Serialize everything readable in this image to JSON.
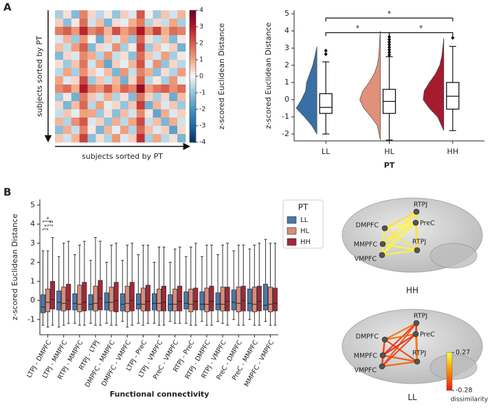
{
  "chart_data": [
    {
      "type": "heatmap",
      "panel": "A",
      "xlabel": "subjects sorted by PT",
      "ylabel": "subjects sorted by PT",
      "colorbar_label": "z-scored Euclidean Distance",
      "clim": [
        -4,
        4
      ],
      "cticks": [
        4,
        3,
        2,
        1,
        0,
        -1,
        -2,
        -3,
        -4
      ],
      "colormap": "RdBu_r",
      "values": [
        [
          -0.8,
          0.3,
          -1.2,
          1.5,
          0.4,
          -0.6,
          0.2,
          -1.0,
          0.5,
          -0.3,
          2.1,
          0.1,
          -0.9,
          0.6,
          -0.4,
          0.8
        ],
        [
          0.5,
          -1.1,
          0.2,
          1.8,
          -0.4,
          0.7,
          -1.3,
          0.3,
          -0.2,
          0.9,
          1.6,
          -0.7,
          0.4,
          -0.5,
          1.0,
          -0.8
        ],
        [
          1.6,
          2.0,
          1.2,
          2.8,
          1.4,
          1.9,
          0.8,
          2.2,
          1.1,
          1.7,
          3.1,
          1.3,
          2.4,
          0.9,
          1.8,
          1.5
        ],
        [
          -0.3,
          0.8,
          -0.9,
          1.2,
          0.1,
          -1.5,
          0.6,
          -0.4,
          0.9,
          -1.0,
          1.9,
          0.3,
          -0.6,
          0.7,
          -1.2,
          0.2
        ],
        [
          0.7,
          -0.5,
          1.1,
          2.0,
          -1.2,
          0.4,
          -0.3,
          1.3,
          -0.8,
          0.2,
          2.4,
          -0.9,
          0.6,
          -0.2,
          0.5,
          -1.4
        ],
        [
          -1.2,
          0.4,
          -0.3,
          1.4,
          0.9,
          -0.7,
          1.2,
          -0.5,
          0.3,
          -1.1,
          1.8,
          0.6,
          -0.4,
          1.1,
          -0.8,
          0.2
        ],
        [
          0.3,
          -0.9,
          0.6,
          1.7,
          -0.4,
          1.0,
          -1.6,
          0.5,
          -0.2,
          0.8,
          2.2,
          -0.3,
          1.3,
          -1.0,
          0.4,
          -0.6
        ],
        [
          -0.6,
          1.0,
          -0.8,
          1.3,
          0.5,
          -0.2,
          0.7,
          -1.3,
          1.2,
          -0.5,
          1.5,
          0.9,
          -1.1,
          0.3,
          -0.7,
          1.1
        ],
        [
          1.0,
          -0.3,
          0.4,
          2.3,
          -0.9,
          0.6,
          -0.5,
          0.8,
          -1.4,
          0.4,
          2.0,
          -0.6,
          0.2,
          -0.8,
          1.2,
          -0.2
        ],
        [
          1.4,
          1.8,
          0.9,
          3.0,
          1.6,
          1.2,
          2.1,
          1.0,
          1.9,
          1.5,
          3.4,
          1.1,
          1.7,
          2.0,
          1.3,
          1.8
        ],
        [
          -0.9,
          0.2,
          -1.4,
          1.6,
          0.6,
          -0.4,
          0.9,
          -0.7,
          0.3,
          -1.2,
          1.7,
          0.5,
          -0.8,
          0.4,
          -1.5,
          0.7
        ],
        [
          0.4,
          -1.3,
          0.7,
          1.9,
          -0.6,
          1.1,
          -0.2,
          0.4,
          -1.0,
          0.6,
          2.5,
          -1.4,
          0.8,
          -0.3,
          0.6,
          -0.9
        ],
        [
          -0.5,
          0.6,
          -0.2,
          1.1,
          1.0,
          -0.9,
          0.3,
          -1.1,
          0.7,
          -0.4,
          1.4,
          0.2,
          -1.6,
          0.9,
          -0.3,
          0.5
        ],
        [
          0.8,
          -0.7,
          1.3,
          2.1,
          -0.3,
          0.5,
          -1.0,
          0.9,
          -0.6,
          1.0,
          2.3,
          -0.5,
          0.7,
          -1.3,
          0.9,
          -0.4
        ],
        [
          -1.1,
          0.9,
          -0.5,
          1.5,
          0.2,
          -1.3,
          0.8,
          -0.2,
          1.1,
          -0.7,
          1.9,
          0.7,
          -0.3,
          0.5,
          -1.7,
          0.4
        ],
        [
          0.6,
          -0.4,
          0.8,
          2.4,
          -1.1,
          0.3,
          -0.7,
          1.2,
          -0.3,
          0.5,
          2.7,
          -0.8,
          1.0,
          -0.6,
          0.3,
          -1.3
        ]
      ]
    },
    {
      "type": "raincloud",
      "ylabel": "z-scored Euclidean Distance",
      "xlabel": "PT",
      "categories": [
        "LL",
        "HL",
        "HH"
      ],
      "colors": [
        "#3a6fa6",
        "#e0917a",
        "#a51c30"
      ],
      "ylim": [
        -2.4,
        5.2
      ],
      "yticks": [
        -2,
        -1,
        0,
        1,
        2,
        3,
        4,
        5
      ],
      "boxes": [
        {
          "low": -2.0,
          "q1": -0.8,
          "median": -0.45,
          "q3": 0.35,
          "high": 2.2,
          "outliers": [
            2.65,
            2.85
          ],
          "kde_y": [
            -2.0,
            -1.5,
            -1.0,
            -0.5,
            0,
            0.5,
            1.0,
            1.5,
            2.0,
            2.5,
            3.1
          ],
          "kde_density": [
            0,
            0.25,
            0.6,
            1.0,
            0.75,
            0.55,
            0.5,
            0.35,
            0.2,
            0.1,
            0
          ]
        },
        {
          "low": -2.35,
          "q1": -0.8,
          "median": -0.1,
          "q3": 0.6,
          "high": 2.5,
          "outliers": [
            2.6,
            2.75,
            2.9,
            3.05,
            3.2,
            3.35,
            3.5,
            3.65
          ],
          "kde_y": [
            -2.35,
            -1.5,
            -1.0,
            -0.5,
            0,
            0.5,
            1.0,
            1.5,
            2.0,
            2.5,
            3.0,
            3.5,
            4.0
          ],
          "kde_density": [
            0,
            0.15,
            0.45,
            0.8,
            1.0,
            0.85,
            0.55,
            0.3,
            0.15,
            0.08,
            0.05,
            0.03,
            0
          ]
        },
        {
          "low": -1.8,
          "q1": -0.55,
          "median": 0.2,
          "q3": 1.0,
          "high": 3.1,
          "outliers": [
            3.6
          ],
          "kde_y": [
            -1.8,
            -1.0,
            -0.5,
            0,
            0.5,
            1.0,
            1.5,
            2.0,
            2.5,
            3.0,
            3.6
          ],
          "kde_density": [
            0,
            0.3,
            0.7,
            1.0,
            0.95,
            0.7,
            0.4,
            0.2,
            0.1,
            0.05,
            0
          ]
        }
      ],
      "brackets": [
        {
          "pair": [
            "LL",
            "HH"
          ],
          "y": 4.75,
          "label": "*"
        },
        {
          "pair": [
            "LL",
            "HL"
          ],
          "y": 3.9,
          "label": "*"
        },
        {
          "pair": [
            "HL",
            "HH"
          ],
          "y": 3.9,
          "label": "*"
        }
      ]
    },
    {
      "type": "grouped_box",
      "panel": "B",
      "ylabel": "z-scored Euclidean Distance",
      "xlabel": "Functional connectivity",
      "categories": [
        "LTPJ - DMPFC",
        "LTPJ - MMPFC",
        "RTPJ - MMPFC",
        "RTPJ - LTPJ",
        "DMPFC - MMPFC",
        "DMPFC - VMPFC",
        "LTPJ - PreC",
        "LTPJ - VMPFC",
        "PreC - VMPFC",
        "RTPJ - PreC",
        "RTPJ - DMPFC",
        "RTPJ - VMPFC",
        "PreC - DMPFC",
        "PreC - MMPFC",
        "MMPFC - VMPFC"
      ],
      "ylim": [
        -1.8,
        5.3
      ],
      "yticks": [
        -1,
        0,
        1,
        2,
        3,
        4,
        5
      ],
      "legend_title": "PT",
      "legend_position": "upper right outside",
      "series": [
        {
          "name": "LL",
          "color": "#4a78a8",
          "values": [
            [
              -1.3,
              -0.65,
              -0.35,
              0.3,
              2.6
            ],
            [
              -1.4,
              -0.5,
              -0.1,
              0.5,
              2.3
            ],
            [
              -1.2,
              -0.5,
              -0.15,
              0.35,
              2.4
            ],
            [
              -1.2,
              -0.5,
              -0.2,
              0.3,
              2.1
            ],
            [
              -1.2,
              -0.5,
              -0.1,
              0.4,
              2.0
            ],
            [
              -1.1,
              -0.55,
              -0.2,
              0.35,
              2.1
            ],
            [
              -1.2,
              -0.45,
              -0.2,
              0.35,
              2.4
            ],
            [
              -1.2,
              -0.5,
              -0.15,
              0.35,
              2.0
            ],
            [
              -1.1,
              -0.55,
              -0.2,
              0.3,
              2.0
            ],
            [
              -1.2,
              -0.45,
              -0.15,
              0.45,
              2.3
            ],
            [
              -1.1,
              -0.5,
              -0.2,
              0.45,
              2.3
            ],
            [
              -1.1,
              -0.5,
              -0.2,
              0.4,
              2.4
            ],
            [
              -1.0,
              -0.5,
              -0.1,
              0.55,
              2.6
            ],
            [
              -1.0,
              -0.55,
              -0.15,
              0.6,
              2.7
            ],
            [
              -1.1,
              -0.5,
              -0.25,
              0.85,
              3.2
            ]
          ]
        },
        {
          "name": "HL",
          "color": "#d98c78",
          "values": [
            [
              -1.4,
              -0.6,
              -0.1,
              0.6,
              2.6
            ],
            [
              -1.3,
              -0.55,
              -0.15,
              0.7,
              3.0
            ],
            [
              -1.3,
              -0.6,
              -0.2,
              0.8,
              2.9
            ],
            [
              -1.3,
              -0.55,
              -0.15,
              0.75,
              3.3
            ],
            [
              -1.3,
              -0.55,
              -0.1,
              0.7,
              2.9
            ],
            [
              -1.4,
              -0.6,
              -0.15,
              0.75,
              2.9
            ],
            [
              -1.3,
              -0.55,
              -0.2,
              0.65,
              2.9
            ],
            [
              -1.3,
              -0.55,
              -0.15,
              0.6,
              2.8
            ],
            [
              -1.2,
              -0.55,
              -0.2,
              0.6,
              2.7
            ],
            [
              -1.3,
              -0.6,
              -0.2,
              0.6,
              2.8
            ],
            [
              -1.3,
              -0.6,
              -0.2,
              0.65,
              2.9
            ],
            [
              -1.2,
              -0.55,
              -0.2,
              0.7,
              2.9
            ],
            [
              -1.3,
              -0.6,
              -0.15,
              0.7,
              2.9
            ],
            [
              -1.3,
              -0.6,
              -0.2,
              0.7,
              2.9
            ],
            [
              -1.3,
              -0.6,
              -0.2,
              0.7,
              3.0
            ]
          ]
        },
        {
          "name": "HH",
          "color": "#a3283a",
          "values": [
            [
              -1.3,
              -0.45,
              0.05,
              1.0,
              3.3
            ],
            [
              -1.2,
              -0.5,
              0.0,
              0.85,
              3.1
            ],
            [
              -1.3,
              -0.55,
              -0.1,
              0.95,
              3.1
            ],
            [
              -1.3,
              -0.5,
              0.1,
              1.05,
              3.1
            ],
            [
              -1.3,
              -0.6,
              0.0,
              0.95,
              3.0
            ],
            [
              -1.3,
              -0.55,
              0.0,
              0.95,
              3.0
            ],
            [
              -1.2,
              -0.55,
              -0.05,
              0.8,
              2.9
            ],
            [
              -1.3,
              -0.55,
              -0.1,
              0.75,
              2.8
            ],
            [
              -1.2,
              -0.55,
              -0.05,
              0.75,
              2.8
            ],
            [
              -1.3,
              -0.5,
              -0.05,
              0.65,
              3.0
            ],
            [
              -1.3,
              -0.55,
              -0.05,
              0.75,
              2.9
            ],
            [
              -1.3,
              -0.55,
              -0.05,
              0.7,
              3.0
            ],
            [
              -1.3,
              -0.55,
              0.0,
              0.75,
              2.9
            ],
            [
              -1.3,
              -0.55,
              -0.05,
              0.75,
              3.0
            ],
            [
              -1.3,
              -0.55,
              -0.15,
              0.65,
              3.0
            ]
          ]
        }
      ],
      "brackets": [
        {
          "category": "LTPJ - DMPFC",
          "pair": [
            "LL",
            "HL"
          ],
          "y": 3.75,
          "label": "*"
        },
        {
          "category": "LTPJ - DMPFC",
          "pair": [
            "HL",
            "HH"
          ],
          "y": 3.95,
          "label": "*"
        },
        {
          "category": "LTPJ - DMPFC",
          "pair": [
            "LL",
            "HH"
          ],
          "y": 4.15,
          "label": "*"
        }
      ]
    },
    {
      "type": "network",
      "nodes": [
        "RTPJ",
        "PreC",
        "DMPFC",
        "MMPFC",
        "RTPJ",
        "VMPFC"
      ],
      "panels": [
        {
          "title": "HH",
          "values": [
            0.22,
            0.25,
            0.24,
            0.2,
            0.26,
            0.23,
            0.21,
            0.24,
            0.25,
            0.22,
            0.19,
            0.24,
            0.26,
            0.23,
            0.25
          ]
        },
        {
          "title": "LL",
          "values": [
            -0.2,
            -0.15,
            -0.25,
            -0.1,
            -0.22,
            -0.18,
            -0.05,
            -0.12,
            -0.2,
            -0.24,
            -0.08,
            -0.16,
            -0.1,
            -0.26,
            -0.19
          ]
        }
      ],
      "clim": [
        -0.28,
        0.27
      ],
      "cticks": [
        0.27,
        -0.28
      ],
      "colorbar_label": "dissimilarity"
    }
  ]
}
